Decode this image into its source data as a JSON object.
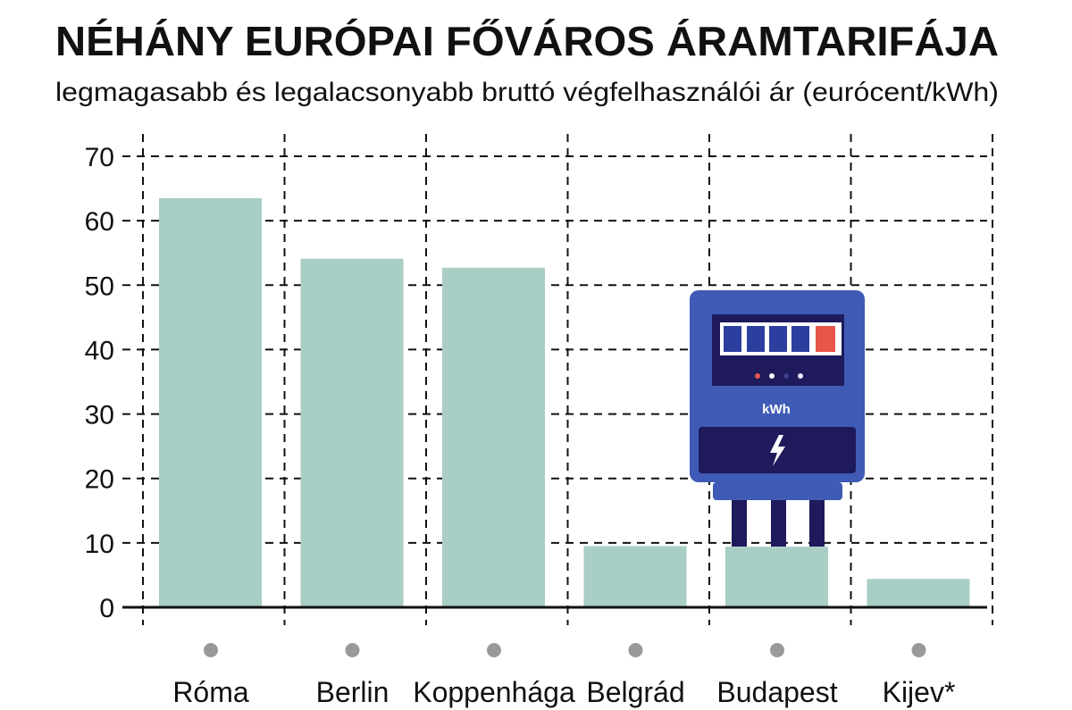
{
  "chart_data": {
    "type": "bar",
    "title": "NÉHÁNY EURÓPAI FŐVÁROS ÁRAMTARIFÁJA",
    "subtitle": "legmagasabb és legalacsonyabb bruttó végfelhasználói ár (eurócent/kWh)",
    "xlabel": "",
    "ylabel": "",
    "ylim": [
      0,
      70
    ],
    "yticks": [
      0,
      10,
      20,
      30,
      40,
      50,
      60,
      70
    ],
    "grid": true,
    "categories": [
      "Róma",
      "Berlin",
      "Koppenhága",
      "Belgrád",
      "Budapest",
      "Kijev*"
    ],
    "values": [
      63.5,
      54.1,
      52.7,
      9.5,
      9.4,
      4.4
    ],
    "bar_color": "#a9cec5",
    "annotation": {
      "meter_label": "kWh"
    }
  }
}
